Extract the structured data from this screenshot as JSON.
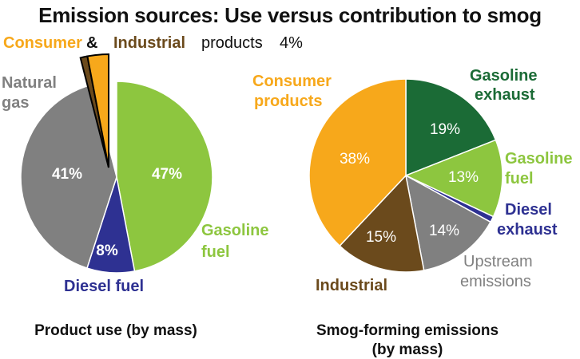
{
  "title": "Emission sources: Use versus contribution to smog",
  "colors": {
    "gasoline": "#8dc63f",
    "diesel": "#2e3192",
    "natural_gas": "#808080",
    "consumer": "#f7a81b",
    "industrial": "#6b4a1c",
    "gasoline_exhaust": "#1b6b36",
    "outline": "#000000"
  },
  "callout": {
    "consumer": "Consumer",
    "amp": "&",
    "industrial": "Industrial",
    "products": "products",
    "value": "4%"
  },
  "chart_data": [
    {
      "type": "pie",
      "title": "Product use (by mass)",
      "slices": [
        {
          "label": "Gasoline fuel",
          "value": 47,
          "value_label": "47%",
          "color": "#8dc63f"
        },
        {
          "label": "Diesel fuel",
          "value": 8,
          "value_label": "8%",
          "color": "#2e3192"
        },
        {
          "label": "Natural gas",
          "value": 41,
          "value_label": "41%",
          "color": "#808080"
        },
        {
          "label": "Industrial products",
          "value": 1,
          "value_label": "",
          "color": "#6b4a1c"
        },
        {
          "label": "Consumer products",
          "value": 3,
          "value_label": "",
          "color": "#f7a81b"
        }
      ],
      "exploded_group": {
        "labels": [
          "Consumer",
          "Industrial"
        ],
        "value_label": "4%"
      }
    },
    {
      "type": "pie",
      "title": "Smog-forming emissions (by mass)",
      "title_lines": [
        "Smog-forming emissions",
        "(by mass)"
      ],
      "slices": [
        {
          "label": "Gasoline exhaust",
          "value": 19,
          "value_label": "19%",
          "color": "#1b6b36"
        },
        {
          "label": "Gasoline fuel",
          "value": 13,
          "value_label": "13%",
          "color": "#8dc63f"
        },
        {
          "label": "Diesel exhaust",
          "value": 1,
          "value_label": "",
          "color": "#2e3192"
        },
        {
          "label": "Upstream emissions",
          "value": 14,
          "value_label": "14%",
          "color": "#808080"
        },
        {
          "label": "Industrial",
          "value": 15,
          "value_label": "15%",
          "color": "#6b4a1c"
        },
        {
          "label": "Consumer products",
          "value": 38,
          "value_label": "38%",
          "color": "#f7a81b"
        }
      ]
    }
  ]
}
